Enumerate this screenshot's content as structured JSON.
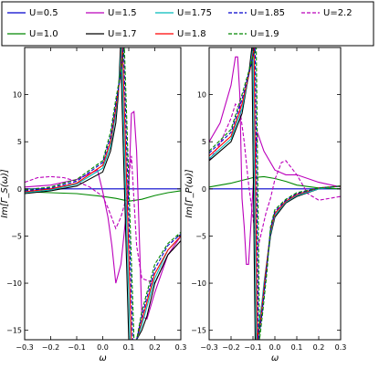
{
  "chart_data": {
    "type": "line",
    "legend": {
      "placement": "top",
      "entries": [
        {
          "label": "U=0.5",
          "color": "#0000cc",
          "dash": "solid"
        },
        {
          "label": "U=1.5",
          "color": "#bb00bb",
          "dash": "solid"
        },
        {
          "label": "U=1.75",
          "color": "#00bbbb",
          "dash": "solid"
        },
        {
          "label": "U=1.85",
          "color": "#0000cc",
          "dash": "dashed"
        },
        {
          "label": "U=2.2",
          "color": "#bb00bb",
          "dash": "dashed"
        },
        {
          "label": "U=1.0",
          "color": "#008800",
          "dash": "solid"
        },
        {
          "label": "U=1.7",
          "color": "#000000",
          "dash": "solid"
        },
        {
          "label": "U=1.8",
          "color": "#ff0000",
          "dash": "solid"
        },
        {
          "label": "U=1.9",
          "color": "#008800",
          "dash": "dashed"
        }
      ]
    },
    "panels": [
      {
        "ylabel": "Im[Γ_S(ω)]",
        "xlabel": "ω",
        "xlim": [
          -0.3,
          0.3
        ],
        "ylim": [
          -16,
          15
        ],
        "xticks": [
          "−0.3",
          "−0.2",
          "−0.1",
          "0.0",
          "0.1",
          "0.2",
          "0.3"
        ],
        "yticks": [
          "−15",
          "−10",
          "−5",
          "0",
          "5",
          "10"
        ],
        "series": [
          {
            "label": "U=0.5",
            "x": [
              -0.3,
              0.3
            ],
            "y": [
              0,
              0
            ]
          },
          {
            "label": "U=1.0",
            "x": [
              -0.3,
              -0.2,
              -0.1,
              0.0,
              0.05,
              0.1,
              0.15,
              0.2,
              0.25,
              0.3
            ],
            "y": [
              -0.3,
              -0.4,
              -0.5,
              -0.8,
              -1.0,
              -1.3,
              -1.1,
              -0.7,
              -0.4,
              -0.2
            ]
          },
          {
            "label": "U=1.5",
            "x": [
              -0.3,
              -0.2,
              -0.1,
              -0.02,
              0.0,
              0.02,
              0.035,
              0.05,
              0.07,
              0.085,
              0.1,
              0.11,
              0.12,
              0.13,
              0.15,
              0.17,
              0.2,
              0.25,
              0.3
            ],
            "y": [
              0.2,
              0.4,
              1.0,
              2.0,
              -0.3,
              -3.0,
              -6.0,
              -10.0,
              -8.0,
              -4.0,
              0.0,
              8.0,
              8.2,
              4.0,
              -13.5,
              -13.8,
              -11.0,
              -7.0,
              -5.0
            ]
          },
          {
            "label": "U=2.2",
            "x": [
              -0.3,
              -0.25,
              -0.2,
              -0.15,
              -0.1,
              -0.05,
              0.0,
              0.02,
              0.05,
              0.07,
              0.09,
              0.11,
              0.13,
              0.15,
              0.2,
              0.25,
              0.3
            ],
            "y": [
              0.7,
              1.2,
              1.3,
              1.2,
              0.8,
              0.2,
              -0.8,
              -2.0,
              -4.2,
              -3.0,
              -1.0,
              3.5,
              -6.0,
              -9.5,
              -10.0,
              -7.0,
              -5.5
            ]
          },
          {
            "label": "U=1.7",
            "x": [
              -0.3,
              -0.2,
              -0.1,
              0.0,
              0.03,
              0.05,
              0.06,
              0.068,
              0.1,
              0.13,
              0.15,
              0.17,
              0.2,
              0.25,
              0.3
            ],
            "y": [
              -0.5,
              -0.2,
              0.3,
              1.8,
              4.0,
              7.0,
              10.0,
              15.0,
              -16.0,
              -16.0,
              -15.0,
              -13.5,
              -10.0,
              -7.0,
              -5.5
            ]
          },
          {
            "label": "U=1.75",
            "x": [
              -0.3,
              -0.2,
              -0.1,
              0.0,
              0.03,
              0.05,
              0.062,
              0.072,
              0.105,
              0.13,
              0.15,
              0.17,
              0.2,
              0.25,
              0.3
            ],
            "y": [
              -0.4,
              -0.1,
              0.5,
              2.2,
              4.5,
              8.0,
              11.0,
              15.0,
              -16.0,
              -16.0,
              -14.5,
              -12.5,
              -9.5,
              -6.5,
              -5.0
            ]
          },
          {
            "label": "U=1.8",
            "x": [
              -0.3,
              -0.2,
              -0.1,
              0.0,
              0.03,
              0.05,
              0.065,
              0.076,
              0.11,
              0.13,
              0.15,
              0.17,
              0.2,
              0.25,
              0.3
            ],
            "y": [
              -0.3,
              0.0,
              0.6,
              2.5,
              5.0,
              8.5,
              11.5,
              15.0,
              -16.0,
              -16.0,
              -14.0,
              -12.0,
              -9.0,
              -6.5,
              -5.0
            ]
          },
          {
            "label": "U=1.85",
            "x": [
              -0.3,
              -0.2,
              -0.1,
              0.0,
              0.03,
              0.05,
              0.068,
              0.08,
              0.115,
              0.13,
              0.15,
              0.17,
              0.2,
              0.25,
              0.3
            ],
            "y": [
              -0.2,
              0.1,
              0.8,
              2.8,
              5.5,
              9.0,
              12.0,
              15.0,
              -16.0,
              -16.0,
              -13.5,
              -11.5,
              -8.5,
              -6.0,
              -4.8
            ]
          },
          {
            "label": "U=1.9",
            "x": [
              -0.3,
              -0.2,
              -0.1,
              0.0,
              0.03,
              0.05,
              0.07,
              0.083,
              0.12,
              0.13,
              0.15,
              0.17,
              0.2,
              0.25,
              0.3
            ],
            "y": [
              -0.1,
              0.2,
              1.0,
              3.0,
              6.0,
              9.5,
              12.5,
              15.0,
              -16.0,
              -16.0,
              -13.0,
              -11.0,
              -8.0,
              -5.8,
              -4.6
            ]
          }
        ]
      },
      {
        "ylabel": "Im[Γ_P(ω)]",
        "xlabel": "ω",
        "xlim": [
          -0.3,
          0.3
        ],
        "ylim": [
          -16,
          15
        ],
        "xticks": [
          "−0.3",
          "−0.2",
          "−0.1",
          "0.0",
          "0.1",
          "0.2",
          "0.3"
        ],
        "yticks": [
          "−15",
          "−10",
          "−5",
          "0",
          "5",
          "10"
        ],
        "series": [
          {
            "label": "U=0.5",
            "x": [
              -0.3,
              0.3
            ],
            "y": [
              0,
              0
            ]
          },
          {
            "label": "U=1.0",
            "x": [
              -0.3,
              -0.2,
              -0.15,
              -0.1,
              -0.05,
              0.0,
              0.05,
              0.1,
              0.2,
              0.3
            ],
            "y": [
              0.2,
              0.6,
              0.9,
              1.2,
              1.3,
              1.1,
              0.8,
              0.4,
              0.1,
              0.0
            ]
          },
          {
            "label": "U=1.5",
            "x": [
              -0.3,
              -0.25,
              -0.2,
              -0.18,
              -0.17,
              -0.16,
              -0.15,
              -0.14,
              -0.13,
              -0.12,
              -0.1,
              -0.08,
              -0.05,
              0.0,
              0.05,
              0.1,
              0.2,
              0.3
            ],
            "y": [
              5.0,
              7.0,
              11.0,
              14.0,
              14.0,
              10.0,
              -1.0,
              -4.0,
              -8.0,
              -8.0,
              0.0,
              6.0,
              4.0,
              2.0,
              1.5,
              1.5,
              0.7,
              0.2
            ]
          },
          {
            "label": "U=2.2",
            "x": [
              -0.3,
              -0.25,
              -0.2,
              -0.18,
              -0.16,
              -0.14,
              -0.12,
              -0.1,
              -0.08,
              -0.06,
              -0.04,
              -0.02,
              0.0,
              0.03,
              0.05,
              0.1,
              0.15,
              0.2,
              0.25,
              0.3
            ],
            "y": [
              3.0,
              4.8,
              7.5,
              9.0,
              8.5,
              5.0,
              0.5,
              -3.0,
              -6.5,
              -4.5,
              -2.5,
              -1.0,
              1.0,
              2.8,
              3.0,
              1.5,
              -0.5,
              -1.2,
              -1.0,
              -0.8
            ]
          },
          {
            "label": "U=1.7",
            "x": [
              -0.3,
              -0.2,
              -0.15,
              -0.12,
              -0.105,
              -0.09,
              -0.075,
              -0.05,
              -0.02,
              0.0,
              0.05,
              0.1,
              0.2,
              0.3
            ],
            "y": [
              3.0,
              5.0,
              8.0,
              12.0,
              15.0,
              -16.0,
              -15.0,
              -10.5,
              -5.0,
              -3.0,
              -1.5,
              -0.8,
              0.0,
              0.3
            ]
          },
          {
            "label": "U=1.75",
            "x": [
              -0.3,
              -0.2,
              -0.15,
              -0.115,
              -0.1,
              -0.085,
              -0.07,
              -0.05,
              -0.02,
              0.0,
              0.05,
              0.1,
              0.2,
              0.3
            ],
            "y": [
              3.2,
              5.3,
              8.5,
              12.5,
              15.0,
              -16.0,
              -14.5,
              -10.0,
              -4.8,
              -2.8,
              -1.4,
              -0.7,
              0.0,
              0.3
            ]
          },
          {
            "label": "U=1.8",
            "x": [
              -0.3,
              -0.2,
              -0.15,
              -0.11,
              -0.095,
              -0.08,
              -0.065,
              -0.045,
              -0.02,
              0.0,
              0.05,
              0.1,
              0.2,
              0.3
            ],
            "y": [
              3.5,
              5.6,
              9.0,
              13.0,
              15.0,
              -16.0,
              -14.0,
              -9.5,
              -4.5,
              -2.6,
              -1.3,
              -0.6,
              0.1,
              0.3
            ]
          },
          {
            "label": "U=1.85",
            "x": [
              -0.3,
              -0.2,
              -0.15,
              -0.105,
              -0.09,
              -0.075,
              -0.06,
              -0.04,
              -0.02,
              0.0,
              0.05,
              0.1,
              0.2,
              0.3
            ],
            "y": [
              3.8,
              6.0,
              9.5,
              13.5,
              15.0,
              -16.0,
              -13.5,
              -9.0,
              -4.3,
              -2.4,
              -1.2,
              -0.5,
              0.1,
              0.3
            ]
          },
          {
            "label": "U=1.9",
            "x": [
              -0.3,
              -0.2,
              -0.15,
              -0.1,
              -0.085,
              -0.07,
              -0.055,
              -0.035,
              -0.02,
              0.0,
              0.05,
              0.1,
              0.2,
              0.3
            ],
            "y": [
              4.0,
              6.3,
              10.0,
              14.0,
              15.0,
              -16.0,
              -13.0,
              -8.5,
              -4.0,
              -2.2,
              -1.1,
              -0.4,
              0.1,
              0.3
            ]
          }
        ]
      }
    ]
  }
}
